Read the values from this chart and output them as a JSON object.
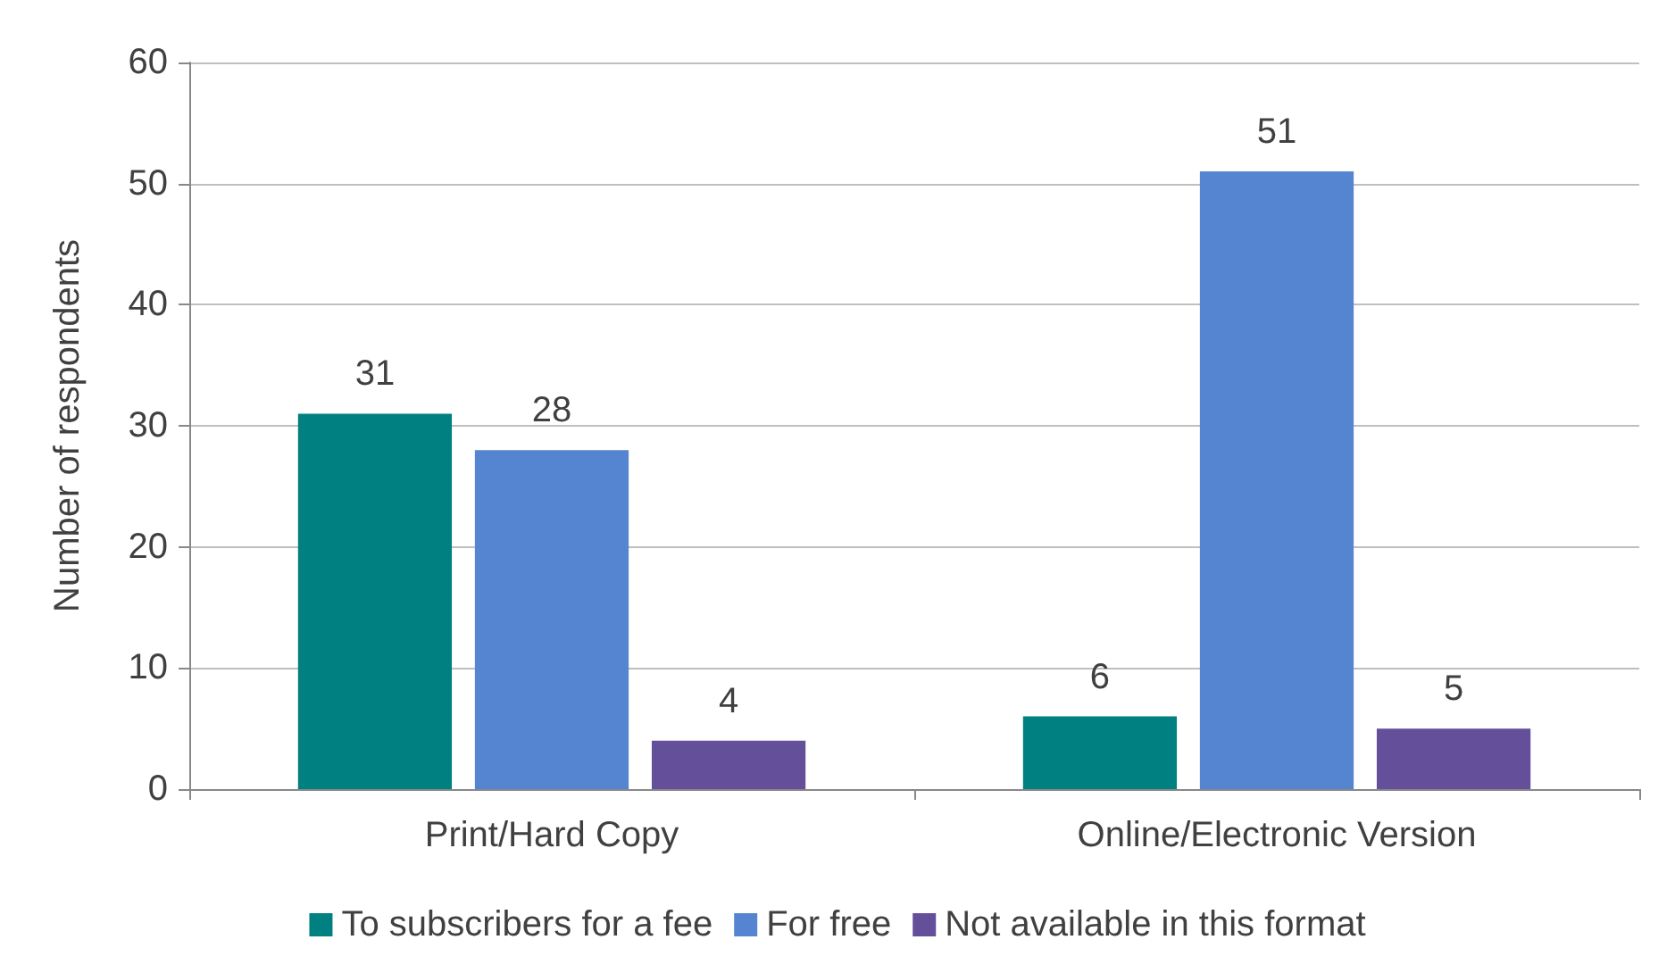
{
  "chart_data": {
    "type": "bar",
    "ylabel": "Number of respondents",
    "categories": [
      "Print/Hard Copy",
      "Online/Electronic Version"
    ],
    "series": [
      {
        "name": "To subscribers for a fee",
        "color": "#008080",
        "values": [
          31,
          6
        ]
      },
      {
        "name": "For free",
        "color": "#5585d0",
        "values": [
          28,
          51
        ]
      },
      {
        "name": "Not available in this format",
        "color": "#634f9a",
        "values": [
          4,
          5
        ]
      }
    ],
    "ylim": [
      0,
      60
    ],
    "yticks": [
      0,
      10,
      20,
      30,
      40,
      50,
      60
    ],
    "grid": "y",
    "legend": "bottom",
    "data_labels": true
  }
}
